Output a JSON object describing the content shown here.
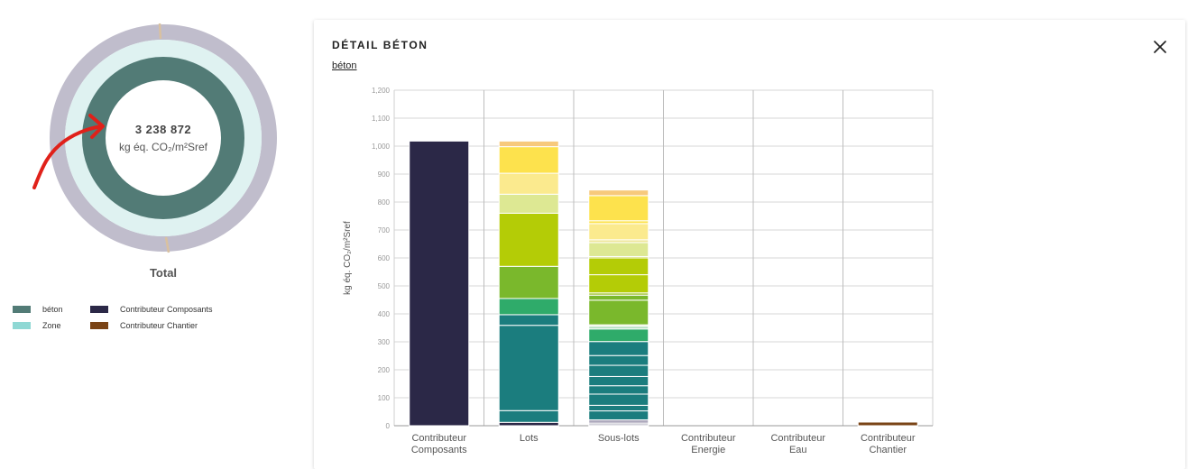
{
  "donut": {
    "total_value": "3 238 872",
    "unit": "kg éq. CO₂/m²Sref",
    "caption": "Total",
    "colors": {
      "outer": "#c0bdcc",
      "middle": "#dff2f1",
      "inner": "#527b76",
      "separator": "#d9c1a0"
    }
  },
  "legend": {
    "items": [
      {
        "label": "béton",
        "color": "#527b76"
      },
      {
        "label": "Zone",
        "color": "#8fd8d4"
      },
      {
        "label": "Contributeur Composants",
        "color": "#2b2847"
      },
      {
        "label": "Contributeur Chantier",
        "color": "#7a4416"
      }
    ]
  },
  "panel": {
    "title": "DÉTAIL BÉTON",
    "link": "béton",
    "close_icon": "close-icon"
  },
  "chart_data": {
    "type": "bar",
    "stacked": true,
    "ylabel": "kg éq. CO₂/m²Sref",
    "ylim": [
      0,
      1200
    ],
    "yticks": [
      "0",
      "100",
      "200",
      "300",
      "400",
      "500",
      "600",
      "700",
      "800",
      "900",
      "1,000",
      "1,100",
      "1,200"
    ],
    "grid": true,
    "categories": [
      "Contributeur Composants",
      "Lots",
      "Sous-lots",
      "Contributeur Energie",
      "Contributeur Eau",
      "Contributeur Chantier"
    ],
    "stacks": [
      [
        {
          "value": 1018,
          "color": "#2b2847"
        }
      ],
      [
        {
          "value": 12,
          "color": "#2b2847"
        },
        {
          "value": 42,
          "color": "#1b7d7e"
        },
        {
          "value": 305,
          "color": "#1b7d7e"
        },
        {
          "value": 38,
          "color": "#1b7d7e"
        },
        {
          "value": 58,
          "color": "#2fab6a"
        },
        {
          "value": 115,
          "color": "#7ab82c"
        },
        {
          "value": 190,
          "color": "#b4cc06"
        },
        {
          "value": 68,
          "color": "#dde893"
        },
        {
          "value": 75,
          "color": "#fbea8e"
        },
        {
          "value": 95,
          "color": "#fde24d"
        },
        {
          "value": 20,
          "color": "#f7c97c"
        }
      ],
      [
        {
          "value": 4,
          "color": "#2b2847"
        },
        {
          "value": 5,
          "color": "#575473"
        },
        {
          "value": 12,
          "color": "#aeaabd"
        },
        {
          "value": 32,
          "color": "#1b7d7e"
        },
        {
          "value": 20,
          "color": "#1b7d7e"
        },
        {
          "value": 40,
          "color": "#1b7d7e"
        },
        {
          "value": 30,
          "color": "#1b7d7e"
        },
        {
          "value": 33,
          "color": "#1b7d7e"
        },
        {
          "value": 40,
          "color": "#1b7d7e"
        },
        {
          "value": 35,
          "color": "#1b7d7e"
        },
        {
          "value": 50,
          "color": "#1b7d7e"
        },
        {
          "value": 45,
          "color": "#2fab6a"
        },
        {
          "value": 10,
          "color": "#b7e0c3"
        },
        {
          "value": 5,
          "color": "#d8edc0"
        },
        {
          "value": 88,
          "color": "#7ab82c"
        },
        {
          "value": 18,
          "color": "#7ab82c"
        },
        {
          "value": 8,
          "color": "#9dc22a"
        },
        {
          "value": 65,
          "color": "#b4cc06"
        },
        {
          "value": 60,
          "color": "#b4cc06"
        },
        {
          "value": 5,
          "color": "#c9d53c"
        },
        {
          "value": 50,
          "color": "#dde893"
        },
        {
          "value": 10,
          "color": "#eee69a"
        },
        {
          "value": 58,
          "color": "#fbea8e"
        },
        {
          "value": 10,
          "color": "#fde24d"
        },
        {
          "value": 90,
          "color": "#fde24d"
        },
        {
          "value": 20,
          "color": "#f7c97c"
        }
      ],
      [],
      [],
      [
        {
          "value": 13,
          "color": "#7a4416"
        }
      ]
    ]
  }
}
